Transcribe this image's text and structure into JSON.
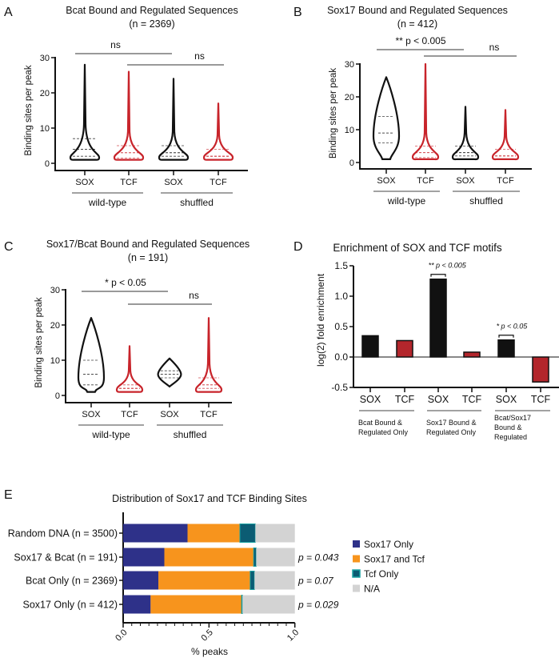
{
  "panels": {
    "A": {
      "label": "A"
    },
    "B": {
      "label": "B"
    },
    "C": {
      "label": "C"
    },
    "D": {
      "label": "D"
    },
    "E": {
      "label": "E"
    }
  },
  "chart_data": [
    {
      "id": "A",
      "type": "violin",
      "title": "Bcat Bound and Regulated Sequences",
      "subtitle": "(n = 2369)",
      "ylabel": "Binding sites per peak",
      "ylim": [
        0,
        30
      ],
      "yticks": [
        "0",
        "10",
        "20",
        "30"
      ],
      "categories": [
        "SOX",
        "TCF",
        "SOX",
        "TCF"
      ],
      "groups": [
        {
          "label": "wild-type",
          "span": [
            0,
            1
          ]
        },
        {
          "label": "shuffled",
          "span": [
            2,
            3
          ]
        }
      ],
      "series": [
        {
          "name": "SOX wild-type",
          "color": "#111111",
          "min": 1,
          "max": 28,
          "q1": 2,
          "median": 4,
          "q3": 7,
          "shape": "skewed"
        },
        {
          "name": "TCF wild-type",
          "color": "#c8242b",
          "min": 1,
          "max": 26,
          "q1": 1.5,
          "median": 3,
          "q3": 5,
          "shape": "skewed"
        },
        {
          "name": "SOX shuffled",
          "color": "#111111",
          "min": 1,
          "max": 24,
          "q1": 2,
          "median": 3,
          "q3": 5,
          "shape": "skewed"
        },
        {
          "name": "TCF shuffled",
          "color": "#c8242b",
          "min": 1,
          "max": 17,
          "q1": 2,
          "median": 2,
          "q3": 4,
          "shape": "skewed"
        }
      ],
      "annotations": [
        {
          "text": "ns",
          "from": 0,
          "to": 2,
          "level": 0
        },
        {
          "text": "ns",
          "from": 1,
          "to": 3,
          "level": 1
        }
      ]
    },
    {
      "id": "B",
      "type": "violin",
      "title": "Sox17 Bound and Regulated Sequences",
      "subtitle": "(n = 412)",
      "ylabel": "Binding sites per peak",
      "ylim": [
        0,
        30
      ],
      "yticks": [
        "0",
        "10",
        "20",
        "30"
      ],
      "categories": [
        "SOX",
        "TCF",
        "SOX",
        "TCF"
      ],
      "groups": [
        {
          "label": "wild-type",
          "span": [
            0,
            1
          ]
        },
        {
          "label": "shuffled",
          "span": [
            2,
            3
          ]
        }
      ],
      "series": [
        {
          "name": "SOX wild-type",
          "color": "#111111",
          "min": 1,
          "max": 26,
          "q1": 6,
          "median": 9,
          "q3": 14,
          "shape": "wide"
        },
        {
          "name": "TCF wild-type",
          "color": "#c8242b",
          "min": 1,
          "max": 30,
          "q1": 1.5,
          "median": 3,
          "q3": 5,
          "shape": "skewed"
        },
        {
          "name": "SOX shuffled",
          "color": "#111111",
          "min": 1,
          "max": 17,
          "q1": 2,
          "median": 3,
          "q3": 5,
          "shape": "skewed"
        },
        {
          "name": "TCF shuffled",
          "color": "#c8242b",
          "min": 1,
          "max": 16,
          "q1": 2,
          "median": 2,
          "q3": 4,
          "shape": "skewed"
        }
      ],
      "annotations": [
        {
          "text": "** p < 0.005",
          "from": 0,
          "to": 2,
          "level": 0
        },
        {
          "text": "ns",
          "from": 1,
          "to": 3,
          "level": 1
        }
      ]
    },
    {
      "id": "C",
      "type": "violin",
      "title": "Sox17/Bcat Bound and Regulated Sequences",
      "subtitle": "(n = 191)",
      "ylabel": "Binding sites per peak",
      "ylim": [
        0,
        30
      ],
      "yticks": [
        "0",
        "10",
        "20",
        "30"
      ],
      "categories": [
        "SOX",
        "TCF",
        "SOX",
        "TCF"
      ],
      "groups": [
        {
          "label": "wild-type",
          "span": [
            0,
            1
          ]
        },
        {
          "label": "shuffled",
          "span": [
            2,
            3
          ]
        }
      ],
      "series": [
        {
          "name": "SOX wild-type",
          "color": "#111111",
          "min": 1,
          "max": 22,
          "q1": 3,
          "median": 6,
          "q3": 10,
          "shape": "wide"
        },
        {
          "name": "TCF wild-type",
          "color": "#c8242b",
          "min": 1,
          "max": 14,
          "q1": 2,
          "median": 2,
          "q3": 3,
          "shape": "skewed"
        },
        {
          "name": "SOX shuffled",
          "color": "#111111",
          "min": 2.5,
          "max": 10.5,
          "q1": 5,
          "median": 6,
          "q3": 7,
          "shape": "diamond"
        },
        {
          "name": "TCF shuffled",
          "color": "#c8242b",
          "min": 1,
          "max": 22,
          "q1": 2,
          "median": 3,
          "q3": 5,
          "shape": "skewed"
        }
      ],
      "annotations": [
        {
          "text": "* p < 0.05",
          "from": 0,
          "to": 2,
          "level": 0
        },
        {
          "text": "ns",
          "from": 1,
          "to": 3,
          "level": 1
        }
      ]
    },
    {
      "id": "D",
      "type": "bar",
      "title": "Enrichment of SOX and TCF motifs",
      "ylabel": "log(2) fold enrichment",
      "ylim": [
        -0.5,
        1.5
      ],
      "yticks": [
        "-0.5",
        "0.0",
        "0.5",
        "1.0",
        "1.5"
      ],
      "categories": [
        "SOX",
        "TCF",
        "SOX",
        "TCF",
        "SOX",
        "TCF"
      ],
      "values": [
        0.35,
        0.27,
        1.28,
        0.08,
        0.28,
        -0.41
      ],
      "colors": [
        "#111111",
        "#b3262c",
        "#111111",
        "#b3262c",
        "#111111",
        "#b3262c"
      ],
      "groups": [
        {
          "lines": [
            "Bcat Bound &",
            "Regulated Only"
          ],
          "span": [
            0,
            1
          ]
        },
        {
          "lines": [
            "Sox17 Bound &",
            "Regulated Only"
          ],
          "span": [
            2,
            3
          ]
        },
        {
          "lines": [
            "Bcat/Sox17",
            "Bound &",
            "Regulated"
          ],
          "span": [
            4,
            5
          ]
        }
      ],
      "annotations": [
        {
          "stars": "**",
          "text": "p < 0.005",
          "bar": 2
        },
        {
          "stars": "*",
          "text": "p < 0.05",
          "bar": 4
        }
      ]
    },
    {
      "id": "E",
      "type": "bar",
      "orientation": "horizontal-stacked",
      "title": "Distribution of Sox17 and TCF Binding Sites",
      "xlabel": "% peaks",
      "xlim": [
        0,
        1
      ],
      "xticks": [
        "0.0",
        "0.5",
        "1.0"
      ],
      "categories": [
        "Random DNA (n = 3500)",
        "Sox17 & Bcat (n = 191)",
        "Bcat Only (n = 2369)",
        "Sox17 Only (n = 412)"
      ],
      "series": [
        {
          "name": "Sox17 Only",
          "color": "#2e3189",
          "values": [
            0.375,
            0.24,
            0.205,
            0.16
          ]
        },
        {
          "name": "Sox17 and Tcf",
          "color": "#f7941d",
          "values": [
            0.305,
            0.52,
            0.535,
            0.53
          ]
        },
        {
          "name": "Tcf Only",
          "color": "#0b5c73",
          "edge": "#1aa4a4",
          "values": [
            0.09,
            0.015,
            0.025,
            0.005
          ]
        },
        {
          "name": "N/A",
          "color": "#d3d3d3",
          "values": [
            0.23,
            0.225,
            0.235,
            0.305
          ]
        }
      ],
      "pvalues": [
        "",
        "p = 0.043",
        "p = 0.07",
        "p = 0.029"
      ]
    }
  ]
}
